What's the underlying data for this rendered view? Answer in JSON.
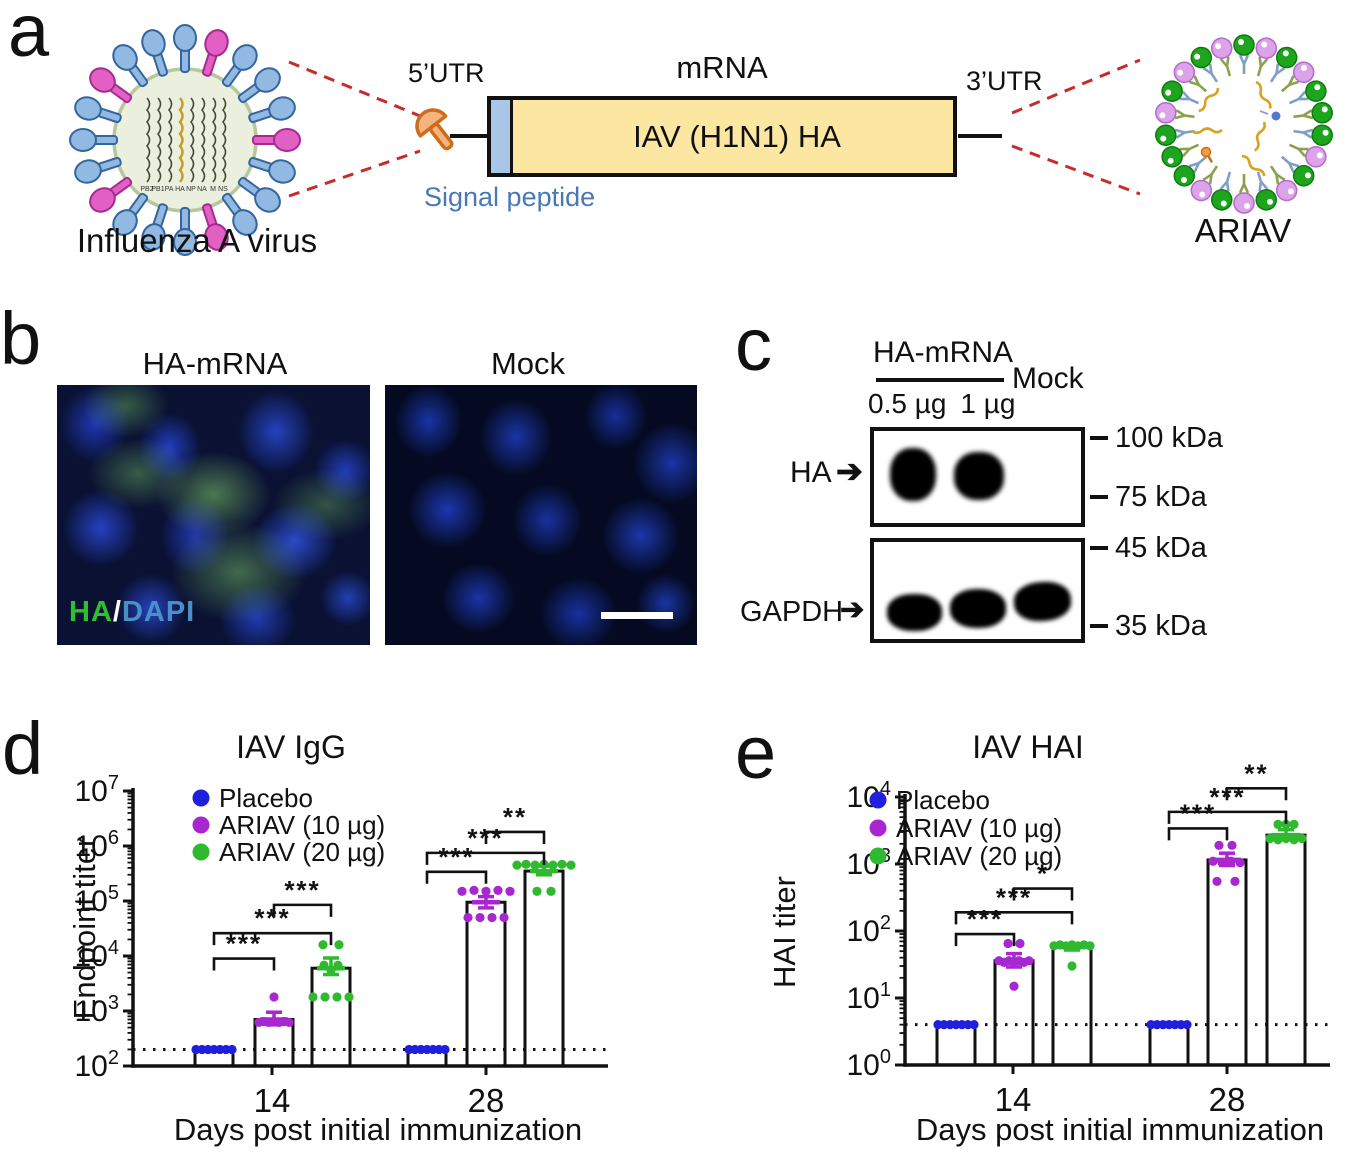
{
  "panel_a": {
    "label": "a",
    "virus_label": "Influenza A virus",
    "segment_labels": [
      "PB2",
      "PB1",
      "PA",
      "HA",
      "NP",
      "NA",
      "M",
      "NS"
    ],
    "construct": {
      "utr5": "5’UTR",
      "mrna": "mRNA",
      "utr3": "3’UTR",
      "gene": "IAV (H1N1) HA",
      "signal_peptide": "Signal peptide"
    },
    "ariav_label": "ARIAV",
    "colors": {
      "dashed_line": "#c92a2a",
      "spike_blue": "#92b9e2",
      "spike_pink": "#e25fc4",
      "cap_orange": "#f5b47e",
      "box_yellow": "#fbe7a2",
      "signal_strip_blue": "#a9c6e7",
      "signal_text_blue": "#4878b8",
      "lipid_green": "#1ea51e",
      "lipid_violet": "#dda3e8"
    }
  },
  "panel_b": {
    "label": "b",
    "left_title": "HA-mRNA",
    "right_title": "Mock",
    "overlay": {
      "ha": "HA",
      "slash": "/",
      "dapi": "DAPI"
    },
    "overlay_colors": {
      "ha": "#2fbf2f",
      "slash": "#ffffff",
      "dapi": "#4a90c8"
    }
  },
  "panel_c": {
    "label": "c",
    "group_title": "HA-mRNA",
    "lanes": [
      "0.5 µg",
      "1 µg",
      "Mock"
    ],
    "rows": [
      "HA",
      "GAPDH"
    ],
    "markers": [
      "100 kDa",
      "75 kDa",
      "45 kDa",
      "35 kDa"
    ]
  },
  "panel_d": {
    "label": "d"
  },
  "panel_e": {
    "label": "e"
  },
  "chart_data": [
    {
      "type": "bar",
      "title": "IAV IgG",
      "ylabel": "Endpoint titer",
      "xlabel": "Days post initial immunization",
      "log_scale": true,
      "ylim": [
        100,
        10000000
      ],
      "ylim_exp": [
        2,
        7
      ],
      "baseline_dotted": 200,
      "categories": [
        "14",
        "28"
      ],
      "legend_position": "upper-left-inside",
      "series": [
        {
          "name": "Placebo",
          "color": "#1f1fdd",
          "values": [
            200,
            200
          ],
          "errors": [
            null,
            null
          ],
          "dots": [
            [
              [
                -18,
                200
              ],
              [
                -12,
                200
              ],
              [
                -6,
                200
              ],
              [
                0,
                200
              ],
              [
                6,
                200
              ],
              [
                12,
                200
              ],
              [
                18,
                200
              ]
            ],
            [
              [
                -18,
                200
              ],
              [
                -12,
                200
              ],
              [
                -6,
                200
              ],
              [
                0,
                200
              ],
              [
                6,
                200
              ],
              [
                12,
                200
              ],
              [
                18,
                200
              ]
            ]
          ]
        },
        {
          "name": "ARIAV (10 µg)",
          "color": "#a827d0",
          "values": [
            700,
            95000
          ],
          "errors": [
            {
              "mean": 700,
              "hi": 950,
              "lo": 560
            },
            {
              "mean": 95000,
              "hi": 120000,
              "lo": 75000
            }
          ],
          "dots": [
            [
              [
                -15,
                620
              ],
              [
                -10,
                645
              ],
              [
                -5,
                620
              ],
              [
                0,
                645
              ],
              [
                5,
                620
              ],
              [
                10,
                645
              ],
              [
                15,
                620
              ],
              [
                0,
                1800
              ]
            ],
            [
              [
                -24,
                150000
              ],
              [
                -12,
                156000
              ],
              [
                0,
                150000
              ],
              [
                12,
                156000
              ],
              [
                24,
                150000
              ],
              [
                -18,
                50000
              ],
              [
                -6,
                50000
              ],
              [
                6,
                50000
              ],
              [
                18,
                50000
              ]
            ]
          ]
        },
        {
          "name": "ARIAV (20 µg)",
          "color": "#2eb92e",
          "values": [
            6000,
            350000
          ],
          "errors": [
            {
              "mean": 6000,
              "hi": 9200,
              "lo": 4600
            },
            {
              "mean": 350000,
              "hi": 430000,
              "lo": 300000
            }
          ],
          "dots": [
            [
              [
                -8,
                16000
              ],
              [
                8,
                16000
              ],
              [
                -7,
                6800
              ],
              [
                7,
                6800
              ],
              [
                0,
                5500
              ],
              [
                -18,
                1800
              ],
              [
                -6,
                1800
              ],
              [
                6,
                1800
              ],
              [
                18,
                1800
              ]
            ],
            [
              [
                -27,
                450000
              ],
              [
                -18,
                465000
              ],
              [
                -9,
                450000
              ],
              [
                0,
                465000
              ],
              [
                9,
                450000
              ],
              [
                18,
                465000
              ],
              [
                27,
                450000
              ],
              [
                -7,
                150000
              ],
              [
                7,
                150000
              ]
            ]
          ]
        }
      ],
      "significance": [
        {
          "cat": 0,
          "a": 0,
          "b": 1,
          "label": "***",
          "y": 9000
        },
        {
          "cat": 0,
          "a": 0,
          "b": 2,
          "label": "***",
          "y": 26000
        },
        {
          "cat": 0,
          "a": 1,
          "b": 2,
          "label": "***",
          "y": 85000
        },
        {
          "cat": 1,
          "a": 0,
          "b": 1,
          "label": "***",
          "y": 340000
        },
        {
          "cat": 1,
          "a": 0,
          "b": 2,
          "label": "***",
          "y": 750000
        },
        {
          "cat": 1,
          "a": 1,
          "b": 2,
          "label": "**",
          "y": 1800000
        }
      ]
    },
    {
      "type": "bar",
      "title": "IAV HAI",
      "ylabel": "HAI titer",
      "xlabel": "Days post initial immunization",
      "log_scale": true,
      "ylim": [
        1,
        10000
      ],
      "ylim_exp": [
        0,
        4
      ],
      "baseline_dotted": 4,
      "categories": [
        "14",
        "28"
      ],
      "legend_position": "upper-left-inside",
      "series": [
        {
          "name": "Placebo",
          "color": "#1f1fdd",
          "values": [
            4,
            4
          ],
          "errors": [
            null,
            null
          ],
          "dots": [
            [
              [
                -18,
                4
              ],
              [
                -12,
                4
              ],
              [
                -6,
                4
              ],
              [
                0,
                4
              ],
              [
                6,
                4
              ],
              [
                12,
                4
              ],
              [
                18,
                4
              ]
            ],
            [
              [
                -18,
                4
              ],
              [
                -12,
                4
              ],
              [
                -6,
                4
              ],
              [
                0,
                4
              ],
              [
                6,
                4
              ],
              [
                12,
                4
              ],
              [
                18,
                4
              ]
            ]
          ]
        },
        {
          "name": "ARIAV (10 µg)",
          "color": "#a827d0",
          "values": [
            36,
            1150
          ],
          "errors": [
            {
              "mean": 36,
              "hi": 46,
              "lo": 29
            },
            {
              "mean": 1150,
              "hi": 1450,
              "lo": 950
            }
          ],
          "dots": [
            [
              [
                -6,
                65
              ],
              [
                6,
                65
              ],
              [
                -15,
                36
              ],
              [
                -10,
                34
              ],
              [
                -5,
                36
              ],
              [
                0,
                34
              ],
              [
                5,
                36
              ],
              [
                10,
                34
              ],
              [
                15,
                36
              ],
              [
                0,
                15
              ]
            ],
            [
              [
                -8,
                1900
              ],
              [
                5,
                1900
              ],
              [
                -14,
                1100
              ],
              [
                -5,
                1050
              ],
              [
                4,
                1100
              ],
              [
                13,
                1050
              ],
              [
                -10,
                550
              ],
              [
                8,
                550
              ]
            ]
          ]
        },
        {
          "name": "ARIAV (20 µg)",
          "color": "#2eb92e",
          "values": [
            58,
            2700
          ],
          "errors": [
            {
              "mean": 58,
              "hi": 64,
              "lo": 52
            },
            {
              "mean": 2700,
              "hi": 3250,
              "lo": 2300
            }
          ],
          "dots": [
            [
              [
                -18,
                60
              ],
              [
                -12,
                62
              ],
              [
                -6,
                60
              ],
              [
                0,
                62
              ],
              [
                6,
                60
              ],
              [
                12,
                62
              ],
              [
                18,
                60
              ],
              [
                0,
                30
              ]
            ],
            [
              [
                -8,
                3900
              ],
              [
                0,
                3900
              ],
              [
                8,
                3900
              ],
              [
                -16,
                2400
              ],
              [
                -8,
                2300
              ],
              [
                0,
                2400
              ],
              [
                8,
                2300
              ],
              [
                16,
                2400
              ]
            ]
          ]
        }
      ],
      "significance": [
        {
          "cat": 0,
          "a": 0,
          "b": 1,
          "label": "***",
          "y": 90
        },
        {
          "cat": 0,
          "a": 0,
          "b": 2,
          "label": "***",
          "y": 190
        },
        {
          "cat": 0,
          "a": 1,
          "b": 2,
          "label": "*",
          "y": 430
        },
        {
          "cat": 1,
          "a": 0,
          "b": 1,
          "label": "***",
          "y": 3400
        },
        {
          "cat": 1,
          "a": 0,
          "b": 2,
          "label": "***",
          "y": 6000
        },
        {
          "cat": 1,
          "a": 1,
          "b": 2,
          "label": "**",
          "y": 13500
        }
      ]
    }
  ]
}
